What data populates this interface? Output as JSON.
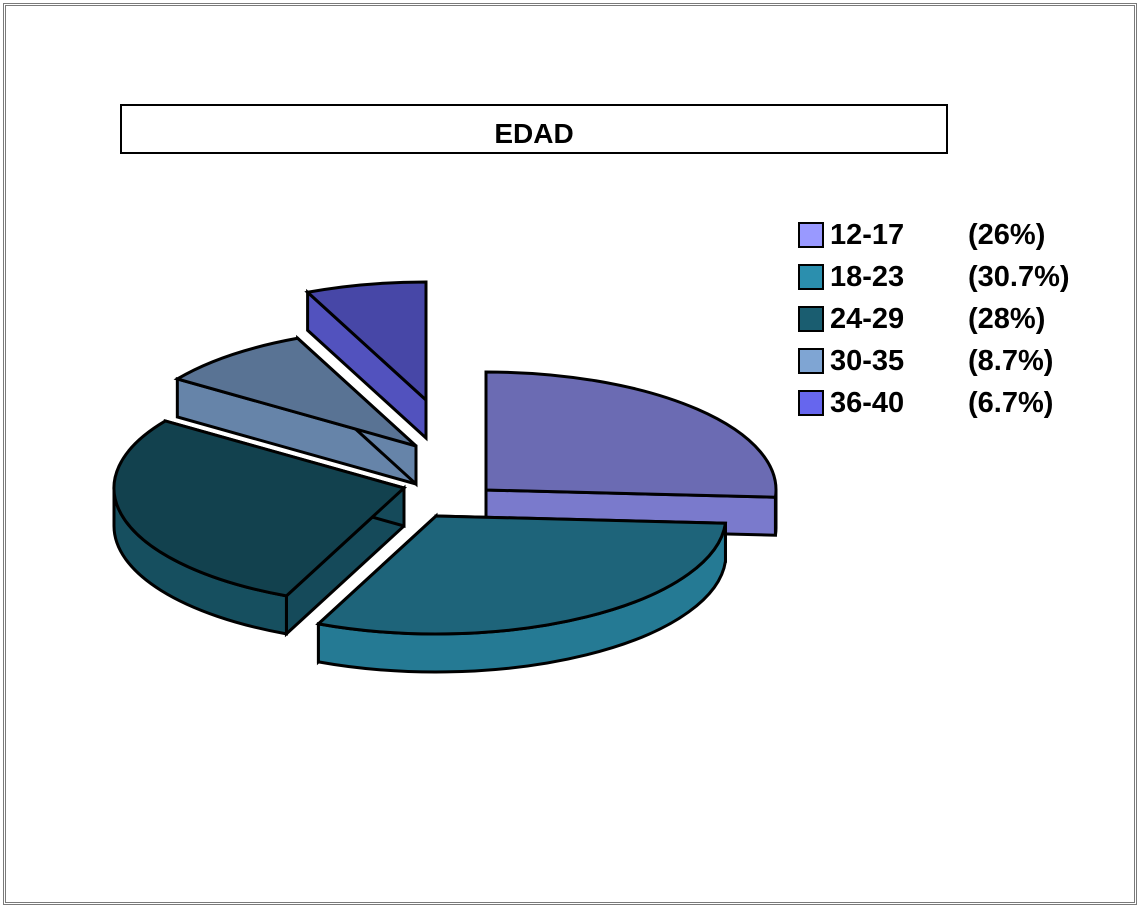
{
  "chart_data": {
    "type": "pie",
    "title": "EDAD",
    "categories": [
      "12-17",
      "18-23",
      "24-29",
      "30-35",
      "36-40"
    ],
    "values": [
      26,
      30.7,
      28,
      8.7,
      6.7
    ],
    "percent_labels": [
      "(26%)",
      "(30.7%)",
      "(28%)",
      "(8.7%)",
      "(6.7%)"
    ],
    "colors": [
      "#9999ff",
      "#2b8fae",
      "#1a5d70",
      "#7fa5d3",
      "#6666ee"
    ],
    "legend_position": "right",
    "exploded": true,
    "three_d": true
  }
}
